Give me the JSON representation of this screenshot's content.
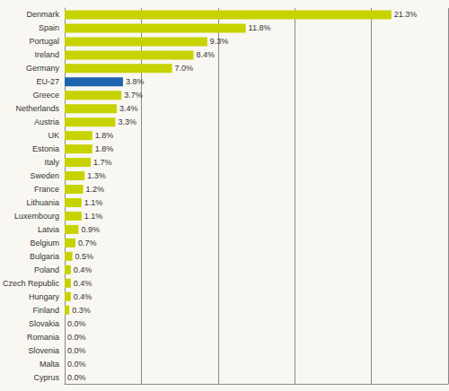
{
  "chart_data": {
    "type": "bar",
    "orientation": "horizontal",
    "categories": [
      "Denmark",
      "Spain",
      "Portugal",
      "Ireland",
      "Germany",
      "EU-27",
      "Greece",
      "Netherlands",
      "Austria",
      "UK",
      "Estonia",
      "Italy",
      "Sweden",
      "France",
      "Lithuania",
      "Luxembourg",
      "Latvia",
      "Belgium",
      "Bulgaria",
      "Poland",
      "Czech Republic",
      "Hungary",
      "Finland",
      "Slovakia",
      "Romania",
      "Slovenia",
      "Malta",
      "Cyprus"
    ],
    "values": [
      21.3,
      11.8,
      9.3,
      8.4,
      7.0,
      3.8,
      3.7,
      3.4,
      3.3,
      1.8,
      1.8,
      1.7,
      1.3,
      1.2,
      1.1,
      1.1,
      0.9,
      0.7,
      0.5,
      0.4,
      0.4,
      0.4,
      0.3,
      0.0,
      0.0,
      0.0,
      0.0,
      0.0
    ],
    "value_labels": [
      "21.3%",
      "11.8%",
      "9.3%",
      "8.4%",
      "7.0%",
      "3.8%",
      "3.7%",
      "3.4%",
      "3.3%",
      "1.8%",
      "1.8%",
      "1.7%",
      "1.3%",
      "1.2%",
      "1.1%",
      "1.1%",
      "0.9%",
      "0.7%",
      "0.5%",
      "0.4%",
      "0.4%",
      "0.4%",
      "0.3%",
      "0.0%",
      "0.0%",
      "0.0%",
      "0.0%",
      "0.0%"
    ],
    "colors": [
      "#c7d300",
      "#c7d300",
      "#c7d300",
      "#c7d300",
      "#c7d300",
      "#1c64ad",
      "#c7d300",
      "#c7d300",
      "#c7d300",
      "#c7d300",
      "#c7d300",
      "#c7d300",
      "#c7d300",
      "#c7d300",
      "#c7d300",
      "#c7d300",
      "#c7d300",
      "#c7d300",
      "#c7d300",
      "#c7d300",
      "#c7d300",
      "#c7d300",
      "#c7d300",
      "#c7d300",
      "#c7d300",
      "#c7d300",
      "#c7d300",
      "#c7d300"
    ],
    "xlim": [
      0,
      25
    ],
    "xticks": [
      0,
      5,
      10,
      15,
      20,
      25
    ],
    "grid": true,
    "data_labels": true,
    "tick_labels": "y"
  }
}
